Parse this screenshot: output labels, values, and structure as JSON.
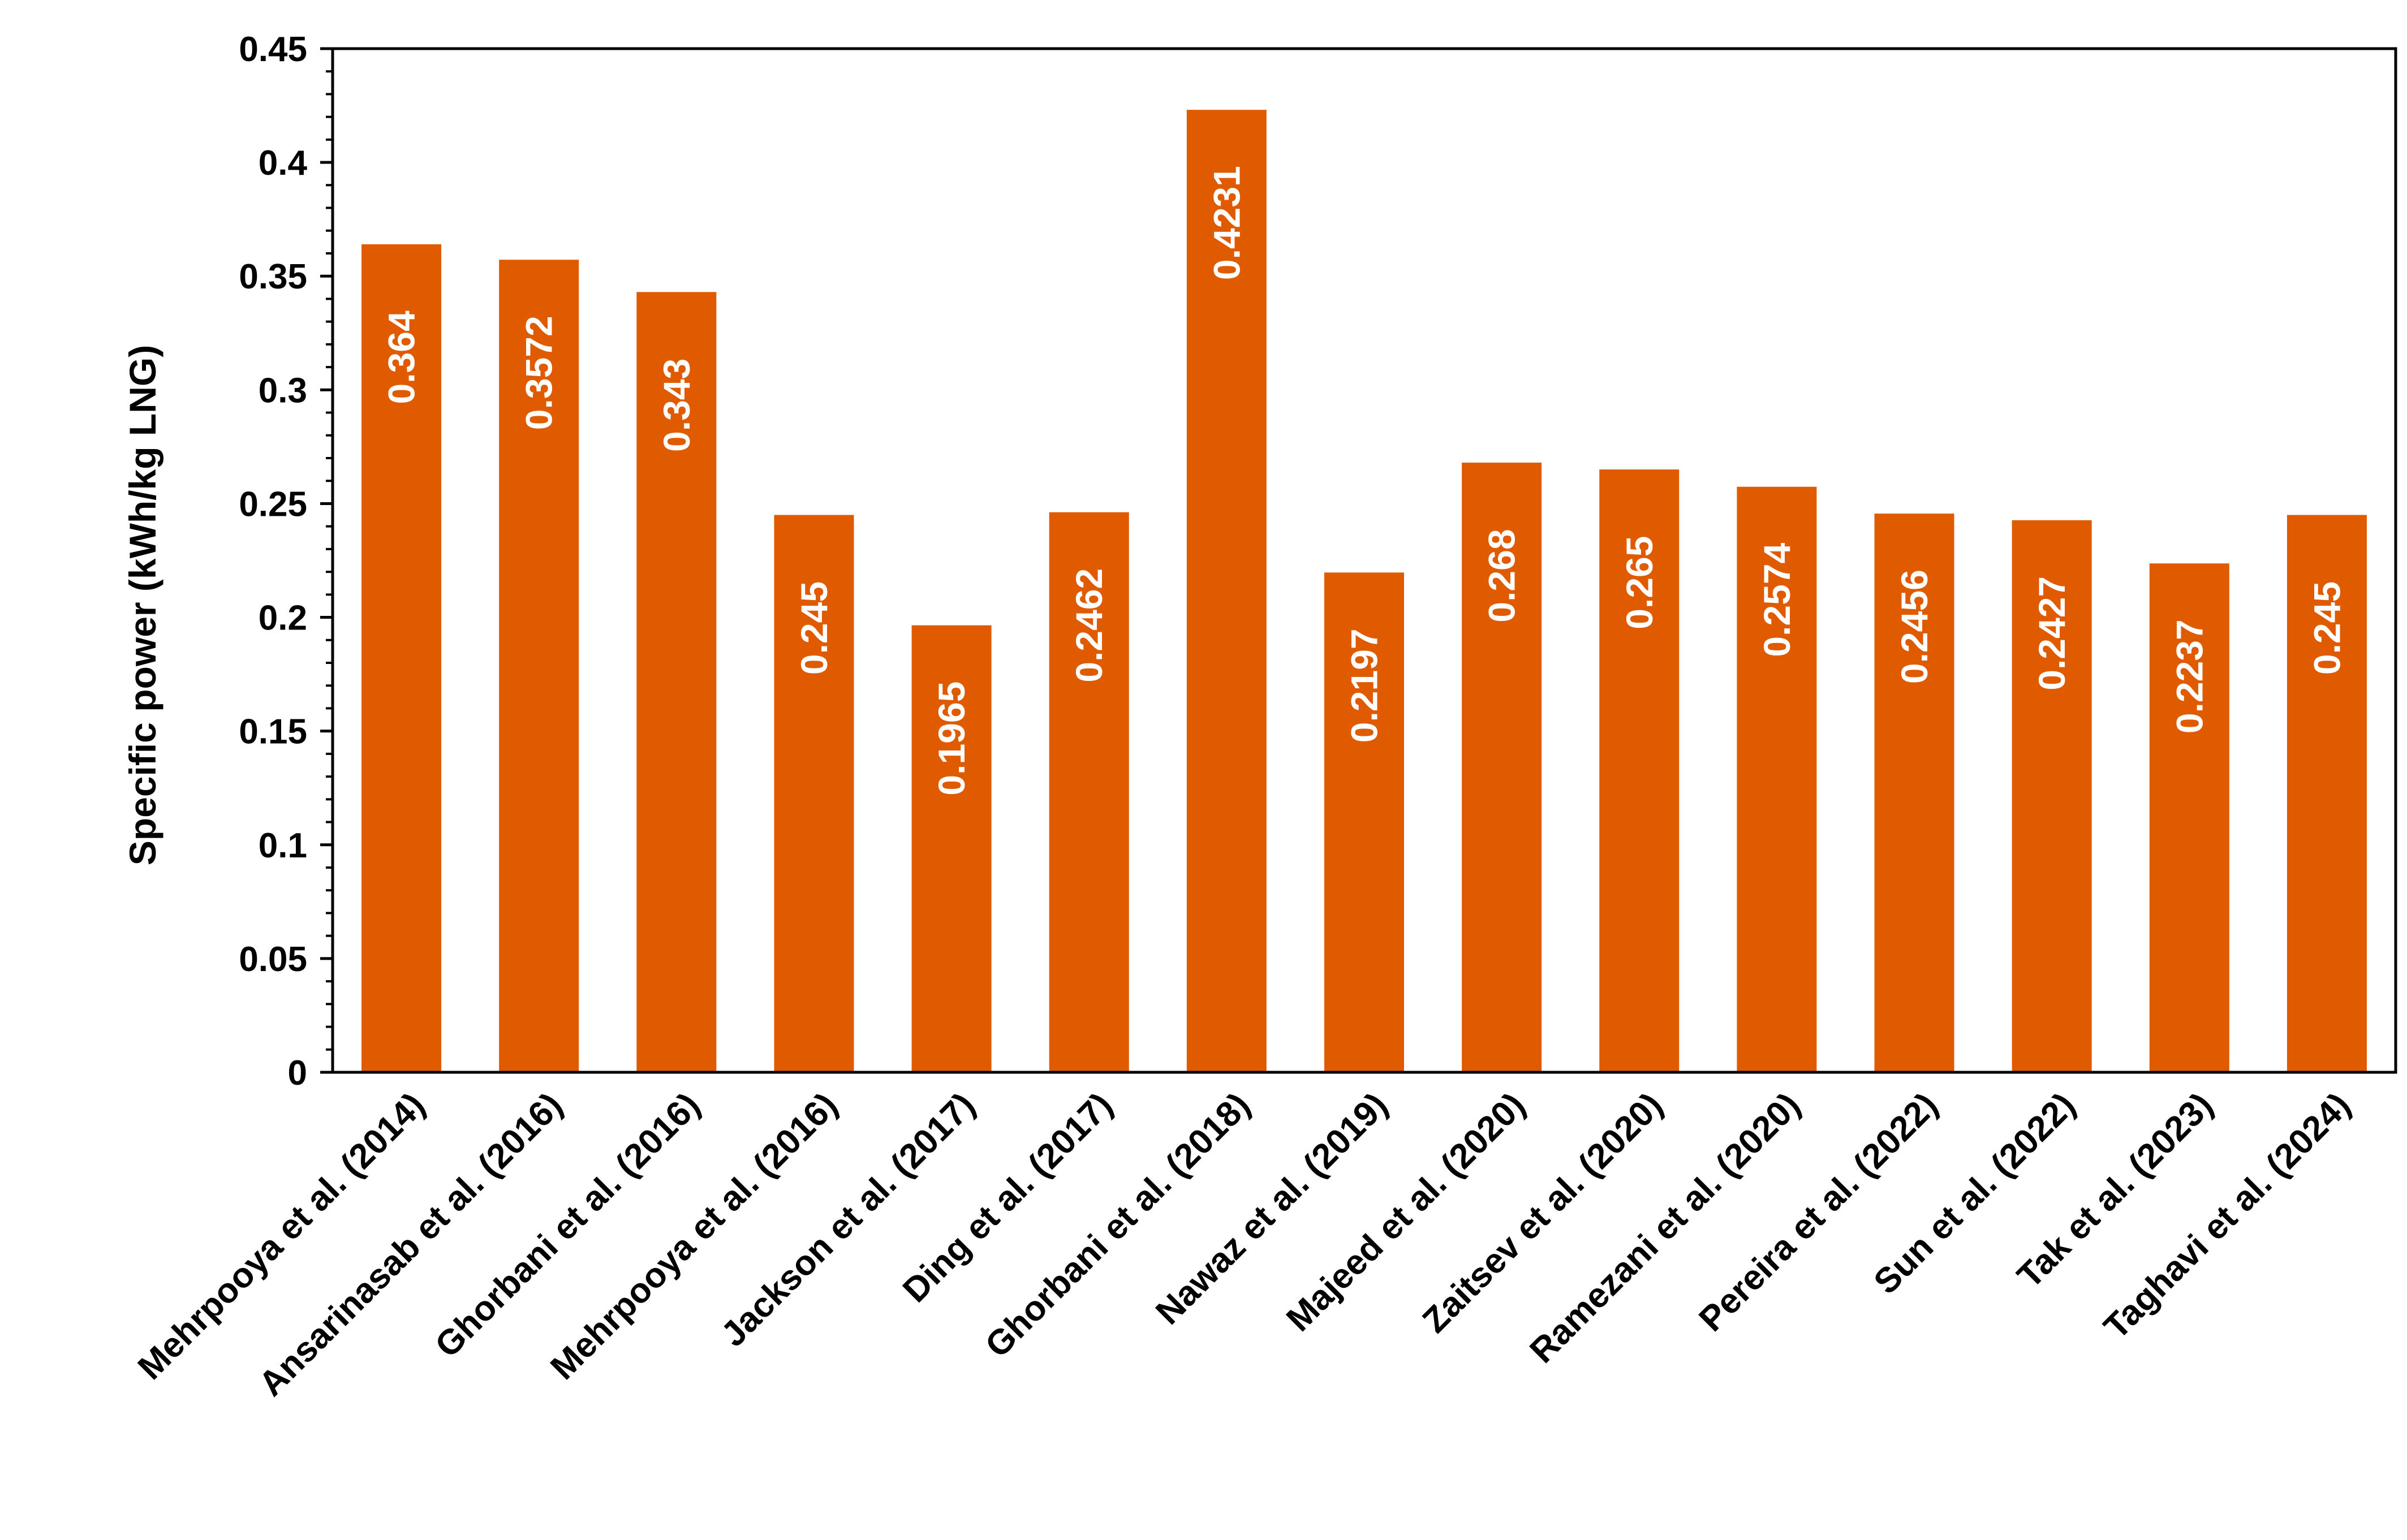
{
  "chart_data": {
    "type": "bar",
    "title": "",
    "xlabel": "",
    "ylabel": "Specific power (kWh/kg LNG)",
    "ylim": [
      0,
      0.45
    ],
    "yticks": [
      "0",
      "0.05",
      "0.1",
      "0.15",
      "0.2",
      "0.25",
      "0.3",
      "0.35",
      "0.4",
      "0.45"
    ],
    "grid": false,
    "bar_color": "#E05A00",
    "categories": [
      "Mehrpooya et al. (2014)",
      "Ansarinasab et al. (2016)",
      "Ghorbani et al. (2016)",
      "Mehrpooya et al. (2016)",
      "Jackson et al. (2017)",
      "Ding et al. (2017)",
      "Ghorbani et al. (2018)",
      "Nawaz et al. (2019)",
      "Majeed et al. (2020)",
      "Zaitsev et al. (2020)",
      "Ramezani et al. (2020)",
      "Pereira et al. (2022)",
      "Sun et al. (2022)",
      "Tak et al. (2023)",
      "Taghavi et al. (2024)"
    ],
    "values": [
      0.364,
      0.3572,
      0.343,
      0.245,
      0.1965,
      0.2462,
      0.4231,
      0.2197,
      0.268,
      0.265,
      0.2574,
      0.2456,
      0.2427,
      0.2237,
      0.245
    ],
    "data_labels": [
      "0.364",
      "0.3572",
      "0.343",
      "0.245",
      "0.1965",
      "0.2462",
      "0.4231",
      "0.2197",
      "0.268",
      "0.265",
      "0.2574",
      "0.2456",
      "0.2427",
      "0.2237",
      "0.245"
    ]
  }
}
